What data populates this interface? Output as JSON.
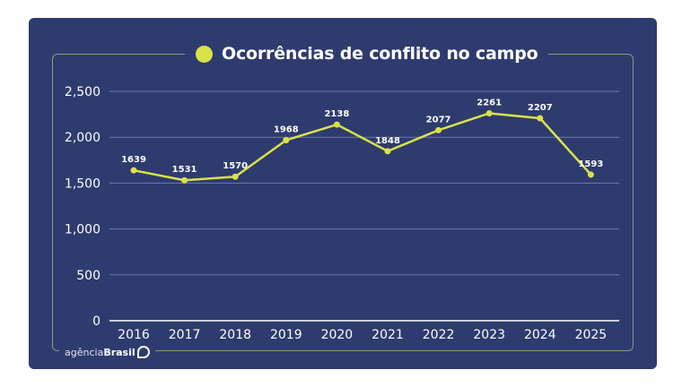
{
  "chart_data": {
    "type": "line",
    "title": "Ocorrências de conflito no campo",
    "xlabel": "",
    "ylabel": "",
    "categories": [
      "2016",
      "2017",
      "2018",
      "2019",
      "2020",
      "2021",
      "2022",
      "2023",
      "2024",
      "2025"
    ],
    "series": [
      {
        "name": "Ocorrências de conflito no campo",
        "values": [
          1639,
          1531,
          1570,
          1968,
          2138,
          1848,
          2077,
          2261,
          2207,
          1593
        ]
      }
    ],
    "ylim": [
      0,
      2500
    ],
    "yticks": [
      0,
      500,
      1000,
      1500,
      2000,
      2500
    ],
    "ytick_labels": [
      "0",
      "500",
      "1,000",
      "1,500",
      "2,000",
      "2,500"
    ],
    "grid": true,
    "data_labels": true,
    "legend": "none",
    "colors": {
      "background": "#2e3b6e",
      "line": "#d9e24a",
      "grid": "#6f7bb0",
      "text": "#ffffff",
      "frame": "#8c9a78"
    }
  },
  "footer": {
    "brand_light": "agência",
    "brand_bold": "Brasil"
  }
}
